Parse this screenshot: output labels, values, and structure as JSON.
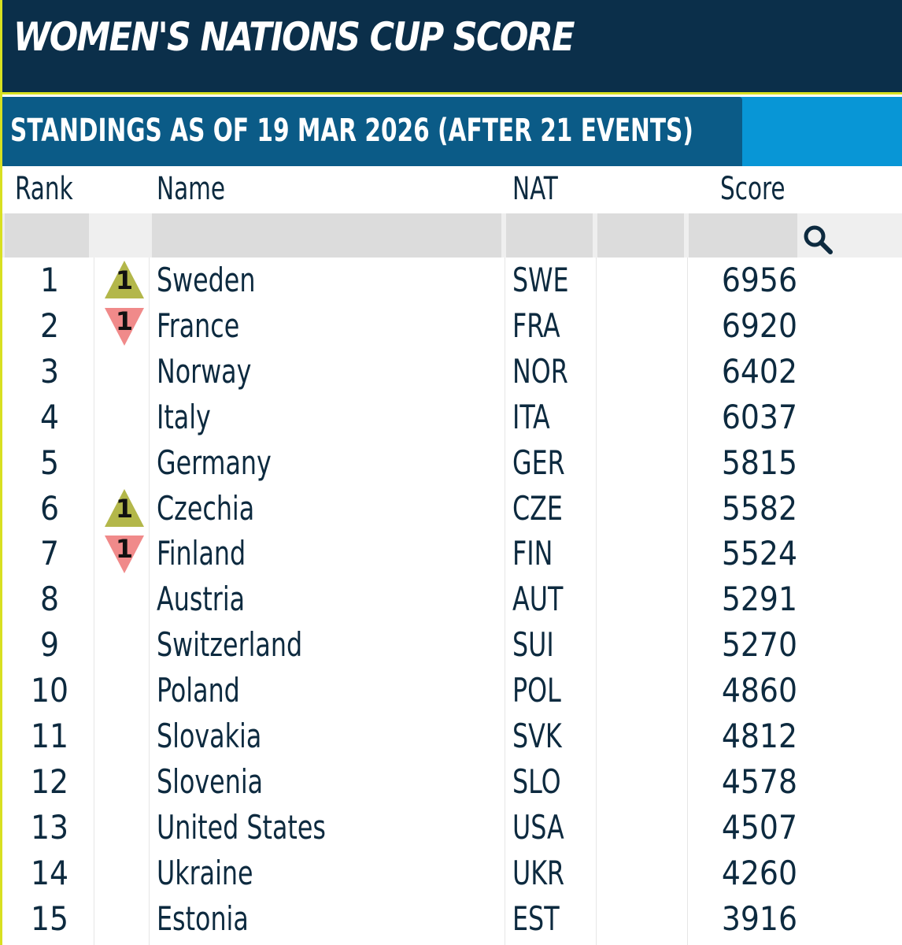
{
  "header": {
    "title": "WOMEN'S NATIONS CUP SCORE",
    "subtitle": "STANDINGS AS OF 19 MAR 2026 (AFTER 21 EVENTS)"
  },
  "columns": {
    "rank": "Rank",
    "name": "Name",
    "nat": "NAT",
    "score": "Score"
  },
  "colors": {
    "title_bg": "#0b2f4a",
    "accent": "#d8e021",
    "subtitle_tab": "#0b5b87",
    "subtitle_bg": "#0896d6",
    "trend_up": "#b3b74a",
    "trend_down": "#f08a8a"
  },
  "icons": {
    "search": "search-icon",
    "trend_up": "triangle-up-icon",
    "trend_down": "triangle-down-icon"
  },
  "rows": [
    {
      "rank": "1",
      "trend": "up",
      "change": "1",
      "name": "Sweden",
      "nat": "SWE",
      "score": "6956"
    },
    {
      "rank": "2",
      "trend": "down",
      "change": "1",
      "name": "France",
      "nat": "FRA",
      "score": "6920"
    },
    {
      "rank": "3",
      "trend": "",
      "change": "",
      "name": "Norway",
      "nat": "NOR",
      "score": "6402"
    },
    {
      "rank": "4",
      "trend": "",
      "change": "",
      "name": "Italy",
      "nat": "ITA",
      "score": "6037"
    },
    {
      "rank": "5",
      "trend": "",
      "change": "",
      "name": "Germany",
      "nat": "GER",
      "score": "5815"
    },
    {
      "rank": "6",
      "trend": "up",
      "change": "1",
      "name": "Czechia",
      "nat": "CZE",
      "score": "5582"
    },
    {
      "rank": "7",
      "trend": "down",
      "change": "1",
      "name": "Finland",
      "nat": "FIN",
      "score": "5524"
    },
    {
      "rank": "8",
      "trend": "",
      "change": "",
      "name": "Austria",
      "nat": "AUT",
      "score": "5291"
    },
    {
      "rank": "9",
      "trend": "",
      "change": "",
      "name": "Switzerland",
      "nat": "SUI",
      "score": "5270"
    },
    {
      "rank": "10",
      "trend": "",
      "change": "",
      "name": "Poland",
      "nat": "POL",
      "score": "4860"
    },
    {
      "rank": "11",
      "trend": "",
      "change": "",
      "name": "Slovakia",
      "nat": "SVK",
      "score": "4812"
    },
    {
      "rank": "12",
      "trend": "",
      "change": "",
      "name": "Slovenia",
      "nat": "SLO",
      "score": "4578"
    },
    {
      "rank": "13",
      "trend": "",
      "change": "",
      "name": "United States",
      "nat": "USA",
      "score": "4507"
    },
    {
      "rank": "14",
      "trend": "",
      "change": "",
      "name": "Ukraine",
      "nat": "UKR",
      "score": "4260"
    },
    {
      "rank": "15",
      "trend": "",
      "change": "",
      "name": "Estonia",
      "nat": "EST",
      "score": "3916"
    }
  ]
}
